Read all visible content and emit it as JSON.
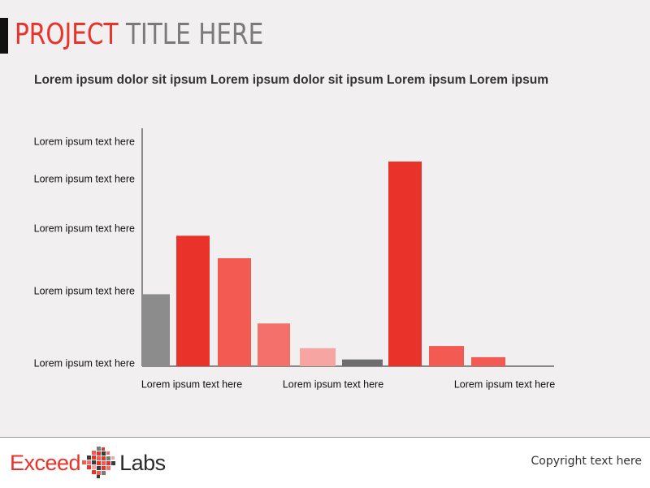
{
  "header": {
    "title_red": "PROJECT",
    "title_gray": "TITLE HERE"
  },
  "subtitle": "Lorem ipsum dolor sit ipsum Lorem ipsum dolor sit ipsum Lorem ipsum Lorem ipsum",
  "chart_data": {
    "type": "bar",
    "title": "",
    "xlabel": "",
    "ylabel": "",
    "ylim": [
      0,
      100
    ],
    "grid": false,
    "legend": "none",
    "y_tick_labels": [
      "Lorem ipsum text here",
      "Lorem ipsum text here",
      "Lorem ipsum text here",
      "Lorem ipsum text here",
      "Lorem ipsum text here"
    ],
    "x_tick_labels": [
      "Lorem ipsum text here",
      "Lorem ipsum text here",
      "Lorem ipsum text here"
    ],
    "values": [
      32,
      58,
      48,
      19,
      8,
      3,
      91,
      9,
      4
    ],
    "colors": [
      "#8c8c8c",
      "#e8322a",
      "#f25a52",
      "#f4706a",
      "#f7a5a3",
      "#6e6e6e",
      "#e8322a",
      "#f25a52",
      "#f25a52"
    ]
  },
  "footer": {
    "logo_left": "Exceed",
    "logo_right": "Labs",
    "copyright": "Copyright text here"
  }
}
